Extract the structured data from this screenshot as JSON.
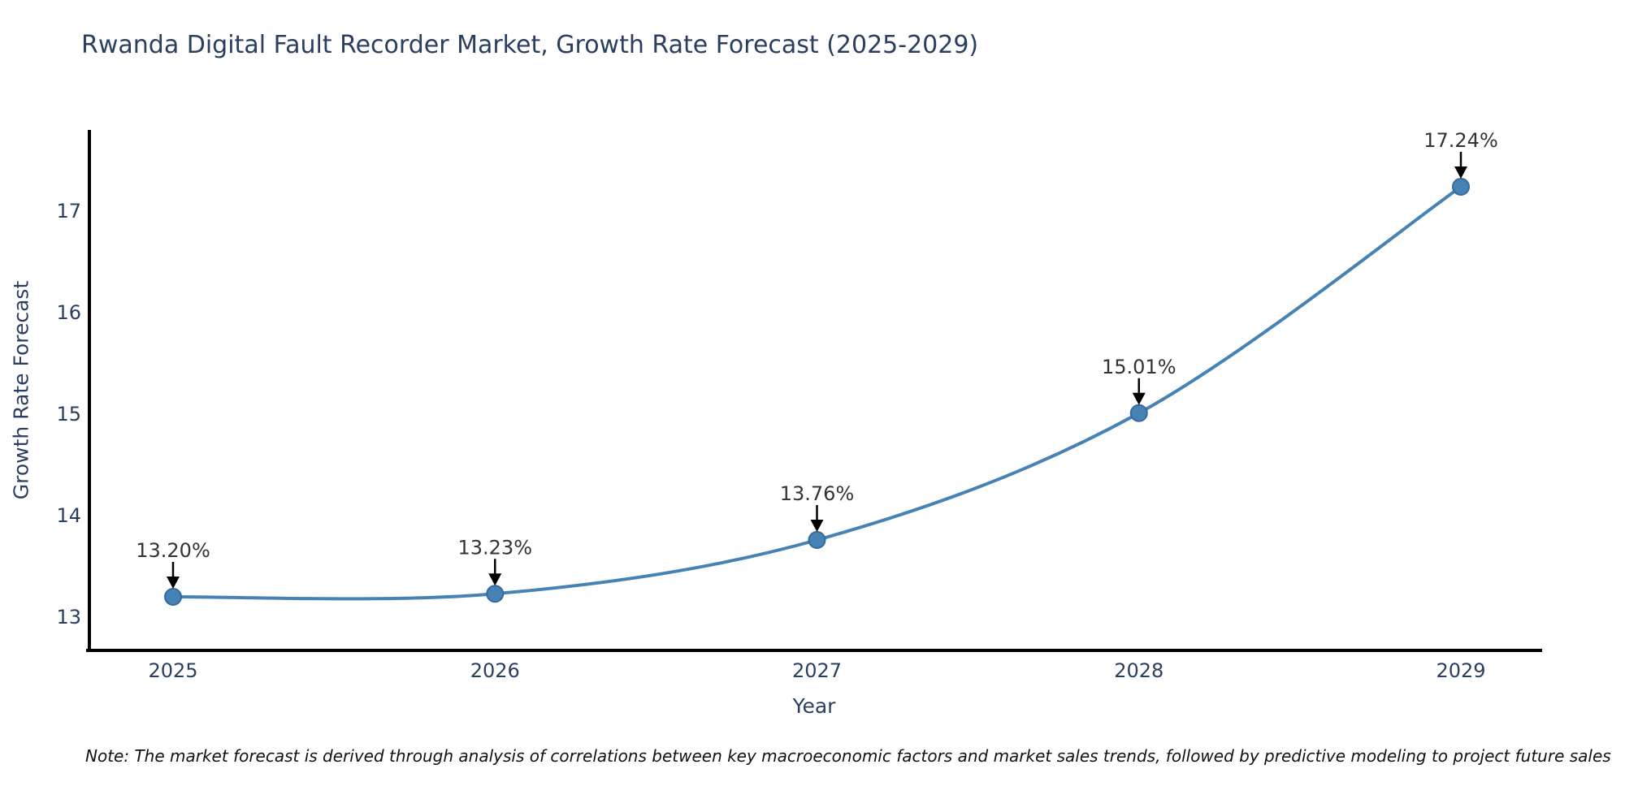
{
  "chart_data": {
    "type": "line",
    "title": "Rwanda Digital Fault Recorder Market, Growth Rate Forecast (2025-2029)",
    "xlabel": "Year",
    "ylabel": "Growth Rate Forecast",
    "categories": [
      "2025",
      "2026",
      "2027",
      "2028",
      "2029"
    ],
    "values": [
      13.2,
      13.23,
      13.76,
      15.01,
      17.24
    ],
    "point_labels": [
      "13.20%",
      "13.23%",
      "13.76%",
      "15.01%",
      "17.24%"
    ],
    "y_ticks": [
      13,
      14,
      15,
      16,
      17
    ],
    "ylim": [
      12.67,
      17.8
    ],
    "grid": false,
    "legend": false,
    "line_shape": "spline",
    "colors": {
      "line": "#4682b4",
      "marker_fill": "#4682b4",
      "marker_edge": "#37699b",
      "axis": "#000000",
      "tick_text": "#2a3f5f",
      "annotation_text": "#333333",
      "annotation_arrow": "#000000",
      "title_text": "#2a3f5f",
      "background": "#ffffff"
    }
  },
  "note": {
    "text": "Note: The market forecast is derived through analysis of correlations between key macroeconomic factors and market sales trends, followed by predictive modeling to project future sales"
  }
}
